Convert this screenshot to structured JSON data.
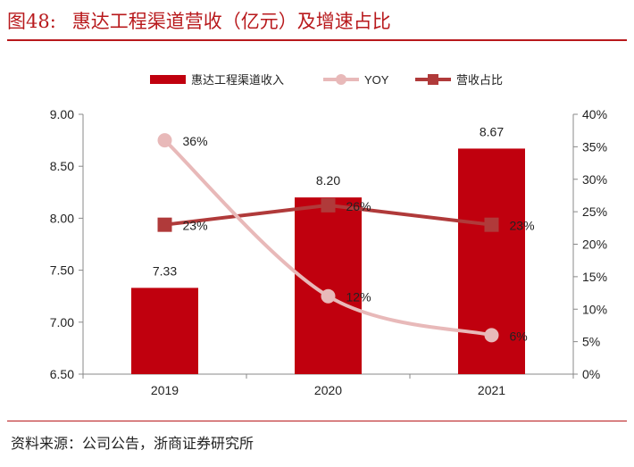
{
  "figure": {
    "label": "图48:",
    "title": "惠达工程渠道营收（亿元）及增速占比",
    "source": "资料来源：公司公告，浙商证券研究所"
  },
  "colors": {
    "bar": "#c0000e",
    "yoy": "#e8b9b9",
    "share": "#b03a3a",
    "title": "#b8191c",
    "axis": "#888888"
  },
  "chart_data": {
    "type": "bar",
    "categories": [
      "2019",
      "2020",
      "2021"
    ],
    "series": [
      {
        "name": "惠达工程渠道收入",
        "kind": "bar",
        "axis": "left",
        "values": [
          7.33,
          8.2,
          8.67
        ],
        "labels": [
          "7.33",
          "8.20",
          "8.67"
        ]
      },
      {
        "name": "YOY",
        "kind": "line",
        "axis": "right",
        "smooth": true,
        "marker": "circle",
        "values": [
          36,
          12,
          6
        ],
        "labels": [
          "36%",
          "12%",
          "6%"
        ]
      },
      {
        "name": "营收占比",
        "kind": "line",
        "axis": "right",
        "marker": "square",
        "values": [
          23,
          26,
          23
        ],
        "labels": [
          "23%",
          "26%",
          "23%"
        ]
      }
    ],
    "y_left": {
      "min": 6.5,
      "max": 9.0,
      "ticks": [
        "6.50",
        "7.00",
        "7.50",
        "8.00",
        "8.50",
        "9.00"
      ]
    },
    "y_right": {
      "min": 0,
      "max": 40,
      "ticks": [
        "0%",
        "5%",
        "10%",
        "15%",
        "20%",
        "25%",
        "30%",
        "35%",
        "40%"
      ]
    },
    "legend_position": "top",
    "grid": false
  }
}
